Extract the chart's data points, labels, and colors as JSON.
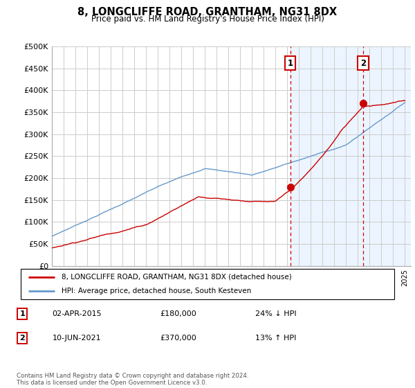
{
  "title": "8, LONGCLIFFE ROAD, GRANTHAM, NG31 8DX",
  "subtitle": "Price paid vs. HM Land Registry's House Price Index (HPI)",
  "legend_line1": "8, LONGCLIFFE ROAD, GRANTHAM, NG31 8DX (detached house)",
  "legend_line2": "HPI: Average price, detached house, South Kesteven",
  "footer": "Contains HM Land Registry data © Crown copyright and database right 2024.\nThis data is licensed under the Open Government Licence v3.0.",
  "transaction1_date": "02-APR-2015",
  "transaction1_price": "£180,000",
  "transaction1_hpi": "24% ↓ HPI",
  "transaction1_year": 2015.25,
  "transaction1_value": 180000,
  "transaction2_date": "10-JUN-2021",
  "transaction2_price": "£370,000",
  "transaction2_hpi": "13% ↑ HPI",
  "transaction2_year": 2021.44,
  "transaction2_value": 370000,
  "ylim": [
    0,
    500000
  ],
  "yticks": [
    0,
    50000,
    100000,
    150000,
    200000,
    250000,
    300000,
    350000,
    400000,
    450000,
    500000
  ],
  "ytick_labels": [
    "£0",
    "£50K",
    "£100K",
    "£150K",
    "£200K",
    "£250K",
    "£300K",
    "£350K",
    "£400K",
    "£450K",
    "£500K"
  ],
  "xlim_start": 1995.0,
  "xlim_end": 2025.5,
  "red_color": "#cc0000",
  "blue_color": "#6699cc",
  "shade_color": "#ddeeff",
  "background_color": "#ffffff",
  "grid_color": "#cccccc",
  "shade_alpha": 0.55
}
